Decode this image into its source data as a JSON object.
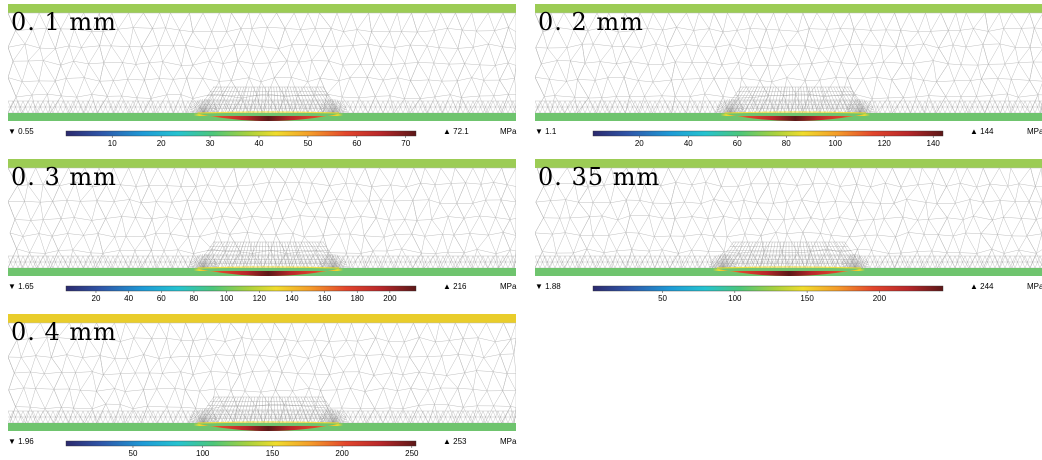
{
  "unit": "MPa",
  "colors": {
    "topGreen": "#9ccc55",
    "topYellow": "#e9cd2b",
    "bottomGreen": "#6fc46e",
    "mesh": "#b8b8b8"
  },
  "panels": [
    {
      "label": "0. 1 mm",
      "min": "0.55",
      "max": "72.1",
      "minVal": 0.55,
      "maxVal": 72.1,
      "ticks": [
        10,
        20,
        30,
        40,
        50,
        60,
        70
      ],
      "contactLeft": 0.385,
      "contactRight": 0.64,
      "topColor": "topGreen"
    },
    {
      "label": "0. 2 mm",
      "min": "1.1",
      "max": "144",
      "minVal": 1.1,
      "maxVal": 144,
      "ticks": [
        20,
        40,
        60,
        80,
        100,
        120,
        140
      ],
      "contactLeft": 0.385,
      "contactRight": 0.64,
      "topColor": "topGreen"
    },
    {
      "label": "0. 3 mm",
      "min": "1.65",
      "max": "216",
      "minVal": 1.65,
      "maxVal": 216,
      "ticks": [
        20,
        40,
        60,
        80,
        100,
        120,
        140,
        160,
        180,
        200
      ],
      "contactLeft": 0.385,
      "contactRight": 0.64,
      "topColor": "topGreen"
    },
    {
      "label": "0. 35 mm",
      "min": "1.88",
      "max": "244",
      "minVal": 1.88,
      "maxVal": 244,
      "ticks": [
        50,
        100,
        150,
        200
      ],
      "contactLeft": 0.37,
      "contactRight": 0.63,
      "topColor": "topGreen"
    },
    {
      "label": "0. 4 mm",
      "min": "1.96",
      "max": "253",
      "minVal": 1.96,
      "maxVal": 253,
      "ticks": [
        50,
        100,
        150,
        200,
        250
      ],
      "contactLeft": 0.385,
      "contactRight": 0.64,
      "topColor": "topYellow"
    }
  ]
}
